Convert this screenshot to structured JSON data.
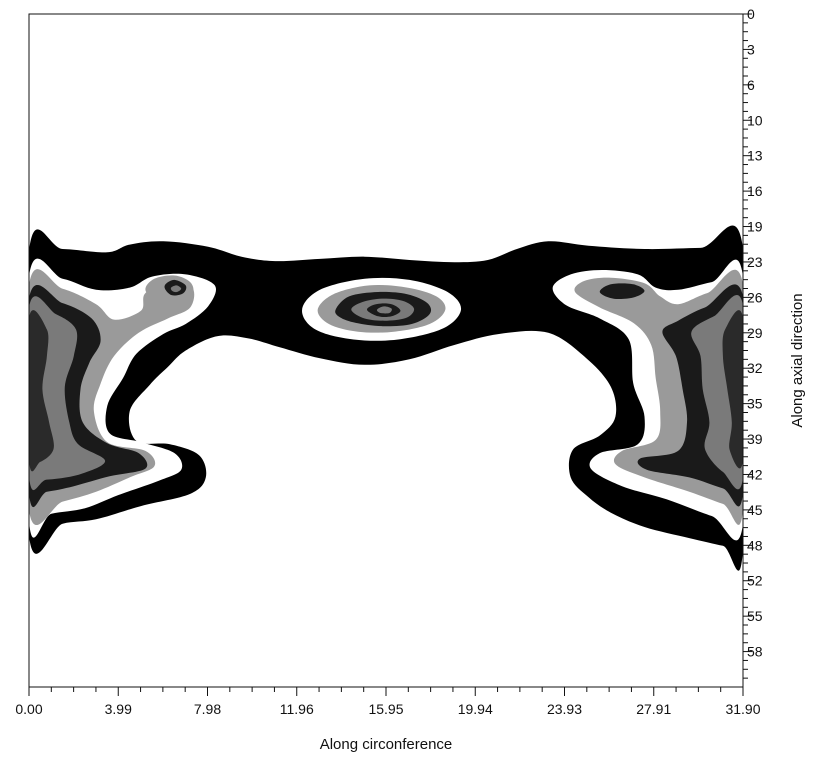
{
  "chart_data": {
    "type": "heatmap",
    "title": "",
    "xlabel": "Along circonference",
    "ylabel": "Along axial direction",
    "xlim": [
      0,
      31.9
    ],
    "ylim": [
      0,
      61
    ],
    "y_axis_position": "right",
    "y_inverted": true,
    "x_ticks": [
      "0.00",
      "3.99",
      "7.98",
      "11.96",
      "15.95",
      "19.94",
      "23.93",
      "27.91",
      "31.90"
    ],
    "y_ticks": [
      "0",
      "3",
      "6",
      "10",
      "13",
      "16",
      "19",
      "23",
      "26",
      "29",
      "32",
      "35",
      "39",
      "42",
      "45",
      "48",
      "52",
      "55",
      "58"
    ],
    "grid": false,
    "legend": "none",
    "levels": [
      {
        "level": 1,
        "color": "#000000"
      },
      {
        "level": 2,
        "color": "#ffffff"
      },
      {
        "level": 3,
        "color": "#9a9a9a"
      },
      {
        "level": 4,
        "color": "#1a1a1a"
      },
      {
        "level": 5,
        "color": "#7a7a7a"
      },
      {
        "level": 6,
        "color": "#2a2a2a"
      }
    ],
    "regions": [
      {
        "name": "main-band",
        "level": 1,
        "boundary": [
          [
            0.0,
            21.5
          ],
          [
            1.5,
            21.3
          ],
          [
            3.5,
            21.6
          ],
          [
            4.5,
            20.9
          ],
          [
            6.0,
            20.6
          ],
          [
            8.0,
            21.1
          ],
          [
            9.5,
            22.0
          ],
          [
            11.0,
            22.4
          ],
          [
            13.0,
            22.2
          ],
          [
            15.0,
            22.0
          ],
          [
            17.0,
            22.3
          ],
          [
            19.0,
            22.5
          ],
          [
            20.5,
            22.3
          ],
          [
            21.8,
            21.3
          ],
          [
            23.2,
            20.6
          ],
          [
            25.0,
            21.0
          ],
          [
            27.5,
            21.3
          ],
          [
            30.0,
            21.2
          ],
          [
            31.9,
            21.2
          ],
          [
            31.9,
            48.5
          ],
          [
            31.0,
            48.2
          ],
          [
            29.5,
            47.5
          ],
          [
            27.5,
            46.5
          ],
          [
            26.0,
            45.2
          ],
          [
            25.0,
            43.8
          ],
          [
            24.2,
            42.0
          ],
          [
            24.3,
            39.5
          ],
          [
            25.5,
            38.2
          ],
          [
            26.2,
            36.5
          ],
          [
            26.0,
            33.8
          ],
          [
            24.9,
            31.2
          ],
          [
            23.2,
            28.9
          ],
          [
            21.0,
            29.0
          ],
          [
            19.0,
            30.0
          ],
          [
            17.0,
            31.3
          ],
          [
            15.0,
            31.8
          ],
          [
            13.0,
            31.2
          ],
          [
            11.2,
            30.2
          ],
          [
            9.8,
            29.4
          ],
          [
            8.4,
            29.2
          ],
          [
            7.0,
            30.5
          ],
          [
            6.2,
            32.0
          ],
          [
            5.4,
            33.6
          ],
          [
            4.5,
            36.0
          ],
          [
            4.8,
            38.7
          ],
          [
            6.3,
            39.0
          ],
          [
            7.6,
            40.0
          ],
          [
            7.9,
            42.0
          ],
          [
            7.2,
            43.5
          ],
          [
            5.0,
            44.6
          ],
          [
            3.0,
            45.8
          ],
          [
            1.5,
            46.2
          ],
          [
            0.0,
            47.3
          ]
        ]
      },
      {
        "name": "left-white",
        "level": 2,
        "boundary": [
          [
            0.0,
            23.8
          ],
          [
            1.5,
            24.0
          ],
          [
            3.0,
            25.0
          ],
          [
            4.5,
            24.8
          ],
          [
            5.5,
            23.8
          ],
          [
            7.0,
            23.6
          ],
          [
            8.3,
            24.6
          ],
          [
            8.0,
            26.5
          ],
          [
            7.0,
            28.1
          ],
          [
            6.0,
            29.0
          ],
          [
            4.8,
            30.8
          ],
          [
            4.2,
            33.0
          ],
          [
            3.5,
            35.5
          ],
          [
            3.6,
            38.0
          ],
          [
            5.0,
            38.8
          ],
          [
            6.5,
            39.8
          ],
          [
            6.8,
            41.3
          ],
          [
            5.8,
            42.3
          ],
          [
            4.0,
            43.6
          ],
          [
            2.5,
            44.8
          ],
          [
            1.0,
            45.3
          ],
          [
            0.0,
            46.0
          ]
        ]
      },
      {
        "name": "left-grey",
        "level": 3,
        "boundary": [
          [
            0.0,
            24.6
          ],
          [
            1.5,
            24.9
          ],
          [
            3.0,
            26.3
          ],
          [
            3.8,
            27.7
          ],
          [
            5.0,
            26.9
          ],
          [
            5.2,
            25.3
          ],
          [
            6.3,
            24.2
          ],
          [
            7.3,
            24.8
          ],
          [
            7.2,
            26.6
          ],
          [
            6.2,
            27.6
          ],
          [
            4.9,
            28.9
          ],
          [
            3.8,
            31.0
          ],
          [
            3.2,
            33.5
          ],
          [
            2.9,
            36.0
          ],
          [
            3.5,
            38.8
          ],
          [
            5.2,
            39.6
          ],
          [
            5.6,
            41.0
          ],
          [
            4.5,
            42.0
          ],
          [
            3.0,
            43.3
          ],
          [
            1.5,
            44.2
          ],
          [
            0.0,
            45.0
          ]
        ]
      },
      {
        "name": "left-dark",
        "level": 4,
        "boundary": [
          [
            0.0,
            25.8
          ],
          [
            1.5,
            26.2
          ],
          [
            2.8,
            27.6
          ],
          [
            3.2,
            29.6
          ],
          [
            2.7,
            31.6
          ],
          [
            2.3,
            34.0
          ],
          [
            2.4,
            37.0
          ],
          [
            3.5,
            38.9
          ],
          [
            4.9,
            39.8
          ],
          [
            5.2,
            41.2
          ],
          [
            3.6,
            41.9
          ],
          [
            2.0,
            42.8
          ],
          [
            0.8,
            43.3
          ],
          [
            0.0,
            43.4
          ]
        ]
      },
      {
        "name": "left-mid",
        "level": 5,
        "boundary": [
          [
            0.0,
            26.6
          ],
          [
            1.2,
            27.2
          ],
          [
            2.1,
            28.6
          ],
          [
            2.0,
            31.0
          ],
          [
            1.6,
            33.8
          ],
          [
            1.8,
            37.0
          ],
          [
            2.2,
            39.0
          ],
          [
            3.4,
            40.5
          ],
          [
            2.3,
            41.7
          ],
          [
            0.8,
            42.2
          ],
          [
            0.0,
            41.9
          ]
        ]
      },
      {
        "name": "left-core",
        "level": 6,
        "boundary": [
          [
            0.0,
            27.6
          ],
          [
            0.8,
            28.6
          ],
          [
            0.8,
            31.0
          ],
          [
            0.6,
            34.0
          ],
          [
            0.9,
            37.0
          ],
          [
            1.1,
            39.4
          ],
          [
            0.5,
            40.6
          ],
          [
            0.0,
            40.4
          ]
        ]
      },
      {
        "name": "left-spot-grey",
        "level": 3,
        "boundary": [
          [
            5.2,
            25.0
          ],
          [
            5.6,
            24.0
          ],
          [
            6.5,
            23.7
          ],
          [
            7.2,
            24.3
          ],
          [
            7.3,
            25.3
          ],
          [
            6.6,
            26.1
          ],
          [
            5.7,
            26.0
          ]
        ]
      },
      {
        "name": "left-spot-dark",
        "level": 4,
        "boundary": [
          [
            6.1,
            24.5
          ],
          [
            6.5,
            24.1
          ],
          [
            7.0,
            24.6
          ],
          [
            6.9,
            25.3
          ],
          [
            6.4,
            25.5
          ],
          [
            6.1,
            25.0
          ]
        ]
      },
      {
        "name": "left-spot-core",
        "level": 5,
        "boundary": [
          [
            6.35,
            24.8
          ],
          [
            6.6,
            24.6
          ],
          [
            6.8,
            24.9
          ],
          [
            6.6,
            25.2
          ],
          [
            6.4,
            25.1
          ]
        ]
      },
      {
        "name": "center-ring-1",
        "level": 2,
        "boundary": [
          [
            12.2,
            26.8
          ],
          [
            13.0,
            25.0
          ],
          [
            15.0,
            24.0
          ],
          [
            17.0,
            24.1
          ],
          [
            18.7,
            25.2
          ],
          [
            19.3,
            26.8
          ],
          [
            18.5,
            28.5
          ],
          [
            16.5,
            29.5
          ],
          [
            14.5,
            29.5
          ],
          [
            12.8,
            28.6
          ]
        ]
      },
      {
        "name": "center-ring-2",
        "level": 3,
        "boundary": [
          [
            12.9,
            26.8
          ],
          [
            13.6,
            25.4
          ],
          [
            15.2,
            24.6
          ],
          [
            16.9,
            24.8
          ],
          [
            18.2,
            25.6
          ],
          [
            18.6,
            26.8
          ],
          [
            17.9,
            28.1
          ],
          [
            16.3,
            28.8
          ],
          [
            14.7,
            28.8
          ],
          [
            13.4,
            28.1
          ]
        ]
      },
      {
        "name": "center-ring-3",
        "level": 4,
        "boundary": [
          [
            13.7,
            26.8
          ],
          [
            14.3,
            25.6
          ],
          [
            15.6,
            25.2
          ],
          [
            16.9,
            25.4
          ],
          [
            17.8,
            26.2
          ],
          [
            17.9,
            27.2
          ],
          [
            17.1,
            28.1
          ],
          [
            15.8,
            28.3
          ],
          [
            14.6,
            28.0
          ],
          [
            13.9,
            27.5
          ]
        ]
      },
      {
        "name": "center-ring-4",
        "level": 5,
        "boundary": [
          [
            14.4,
            26.8
          ],
          [
            14.9,
            26.1
          ],
          [
            15.8,
            25.8
          ],
          [
            16.7,
            26.0
          ],
          [
            17.2,
            26.7
          ],
          [
            16.9,
            27.5
          ],
          [
            16.0,
            27.8
          ],
          [
            15.0,
            27.6
          ]
        ]
      },
      {
        "name": "center-ring-5",
        "level": 4,
        "boundary": [
          [
            15.1,
            26.8
          ],
          [
            15.5,
            26.3
          ],
          [
            16.2,
            26.3
          ],
          [
            16.6,
            26.9
          ],
          [
            16.2,
            27.4
          ],
          [
            15.6,
            27.4
          ]
        ]
      },
      {
        "name": "center-ring-6",
        "level": 5,
        "boundary": [
          [
            15.55,
            26.8
          ],
          [
            15.85,
            26.5
          ],
          [
            16.2,
            26.7
          ],
          [
            16.1,
            27.1
          ],
          [
            15.7,
            27.1
          ]
        ]
      },
      {
        "name": "right-white",
        "level": 2,
        "boundary": [
          [
            31.9,
            23.8
          ],
          [
            30.5,
            24.3
          ],
          [
            29.0,
            25.0
          ],
          [
            28.0,
            24.8
          ],
          [
            27.2,
            23.6
          ],
          [
            25.6,
            23.2
          ],
          [
            24.2,
            23.6
          ],
          [
            23.4,
            24.8
          ],
          [
            24.0,
            26.4
          ],
          [
            25.5,
            27.6
          ],
          [
            26.8,
            29.5
          ],
          [
            27.0,
            33.5
          ],
          [
            27.5,
            36.5
          ],
          [
            27.2,
            39.0
          ],
          [
            25.5,
            39.8
          ],
          [
            25.1,
            41.2
          ],
          [
            26.5,
            42.8
          ],
          [
            28.5,
            44.0
          ],
          [
            30.5,
            45.5
          ],
          [
            31.9,
            46.2
          ]
        ]
      },
      {
        "name": "right-grey",
        "level": 3,
        "boundary": [
          [
            31.9,
            24.5
          ],
          [
            30.3,
            25.3
          ],
          [
            29.0,
            26.3
          ],
          [
            28.2,
            25.6
          ],
          [
            27.5,
            24.4
          ],
          [
            26.0,
            23.9
          ],
          [
            24.8,
            24.2
          ],
          [
            24.4,
            25.2
          ],
          [
            25.5,
            26.6
          ],
          [
            27.0,
            28.0
          ],
          [
            27.8,
            30.0
          ],
          [
            28.0,
            33.0
          ],
          [
            28.2,
            36.0
          ],
          [
            28.0,
            38.6
          ],
          [
            26.5,
            39.6
          ],
          [
            26.2,
            40.8
          ],
          [
            27.5,
            42.0
          ],
          [
            29.5,
            43.3
          ],
          [
            31.0,
            44.4
          ],
          [
            31.9,
            44.9
          ]
        ]
      },
      {
        "name": "right-dark",
        "level": 4,
        "boundary": [
          [
            31.9,
            25.6
          ],
          [
            30.2,
            26.6
          ],
          [
            29.0,
            27.8
          ],
          [
            28.3,
            28.8
          ],
          [
            28.9,
            31.0
          ],
          [
            29.2,
            34.0
          ],
          [
            29.4,
            37.0
          ],
          [
            29.0,
            39.6
          ],
          [
            27.3,
            40.3
          ],
          [
            27.6,
            41.3
          ],
          [
            29.5,
            42.0
          ],
          [
            31.0,
            43.0
          ],
          [
            31.9,
            43.4
          ]
        ]
      },
      {
        "name": "right-mid",
        "level": 5,
        "boundary": [
          [
            31.9,
            26.4
          ],
          [
            30.6,
            27.4
          ],
          [
            29.6,
            28.8
          ],
          [
            30.0,
            31.0
          ],
          [
            30.1,
            34.0
          ],
          [
            30.4,
            37.0
          ],
          [
            30.2,
            39.4
          ],
          [
            31.0,
            41.5
          ],
          [
            31.9,
            42.0
          ]
        ]
      },
      {
        "name": "right-core",
        "level": 6,
        "boundary": [
          [
            31.9,
            27.6
          ],
          [
            31.1,
            28.6
          ],
          [
            31.0,
            31.0
          ],
          [
            31.2,
            34.0
          ],
          [
            31.4,
            37.0
          ],
          [
            31.3,
            39.5
          ],
          [
            31.9,
            40.4
          ]
        ]
      },
      {
        "name": "right-spot",
        "level": 4,
        "boundary": [
          [
            25.5,
            25.2
          ],
          [
            26.0,
            24.5
          ],
          [
            27.0,
            24.5
          ],
          [
            27.5,
            25.1
          ],
          [
            27.0,
            25.7
          ],
          [
            26.1,
            25.8
          ]
        ]
      }
    ]
  }
}
